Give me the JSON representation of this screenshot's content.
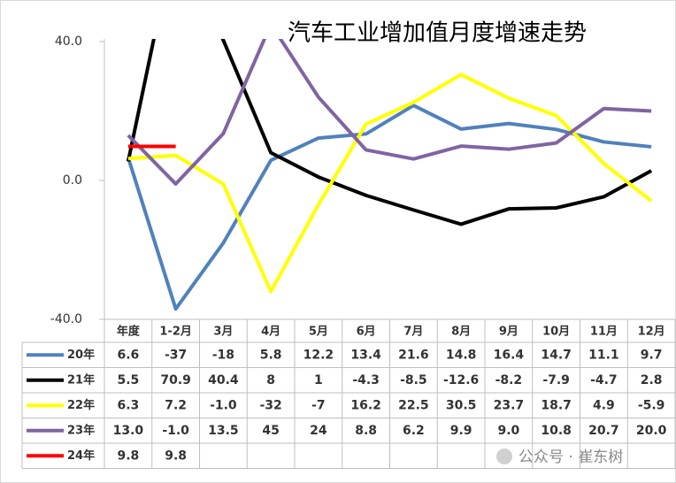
{
  "chart_data": {
    "type": "line",
    "title": "汽车工业增加值月度增速走势",
    "categories": [
      "年度",
      "1-2月",
      "3月",
      "4月",
      "5月",
      "6月",
      "7月",
      "8月",
      "9月",
      "10月",
      "11月",
      "12月"
    ],
    "ylim": [
      -40,
      40
    ],
    "yticks": [
      {
        "value": -40,
        "label": "-40.0"
      },
      {
        "value": 0,
        "label": "0.0"
      },
      {
        "value": 40,
        "label": "40.0"
      }
    ],
    "series": [
      {
        "name": "20年",
        "color": "#4f81bd",
        "values": [
          6.6,
          -37,
          -18,
          5.8,
          12.2,
          13.4,
          21.6,
          14.8,
          16.4,
          14.7,
          11.1,
          9.7
        ],
        "value_labels": [
          "6.6",
          "-37",
          "-18",
          "5.8",
          "12.2",
          "13.4",
          "21.6",
          "14.8",
          "16.4",
          "14.7",
          "11.1",
          "9.7"
        ]
      },
      {
        "name": "21年",
        "color": "#000000",
        "values": [
          5.5,
          70.9,
          40.4,
          8,
          1,
          -4.3,
          -8.5,
          -12.6,
          -8.2,
          -7.9,
          -4.7,
          2.8
        ],
        "value_labels": [
          "5.5",
          "70.9",
          "40.4",
          "8",
          "1",
          "-4.3",
          "-8.5",
          "-12.6",
          "-8.2",
          "-7.9",
          "-4.7",
          "2.8"
        ]
      },
      {
        "name": "22年",
        "color": "#ffff00",
        "values": [
          6.3,
          7.2,
          -1.0,
          -32,
          -7,
          16.2,
          22.5,
          30.5,
          23.7,
          18.7,
          4.9,
          -5.9
        ],
        "value_labels": [
          "6.3",
          "7.2",
          "-1.0",
          "-32",
          "-7",
          "16.2",
          "22.5",
          "30.5",
          "23.7",
          "18.7",
          "4.9",
          "-5.9"
        ]
      },
      {
        "name": "23年",
        "color": "#8064a2",
        "values": [
          13.0,
          -1.0,
          13.5,
          45,
          24,
          8.8,
          6.2,
          9.9,
          9.0,
          10.8,
          20.7,
          20.0
        ],
        "value_labels": [
          "13.0",
          "-1.0",
          "13.5",
          "45",
          "24",
          "8.8",
          "6.2",
          "9.9",
          "9.0",
          "10.8",
          "20.7",
          "20.0"
        ]
      },
      {
        "name": "24年",
        "color": "#ff0000",
        "values": [
          9.8,
          9.8,
          null,
          null,
          null,
          null,
          null,
          null,
          null,
          null,
          null,
          null
        ],
        "value_labels": [
          "9.8",
          "9.8",
          null,
          null,
          null,
          null,
          null,
          null,
          null,
          null,
          null,
          null
        ]
      }
    ],
    "watermark": "公众号 · 崔东树"
  }
}
